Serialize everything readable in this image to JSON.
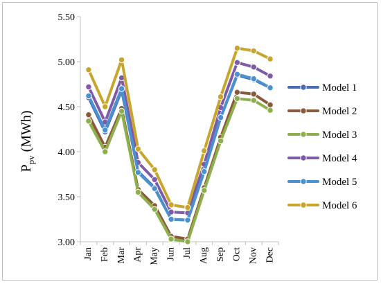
{
  "chart_data": {
    "type": "line",
    "categories": [
      "Jan",
      "Feb",
      "Mar",
      "Apr",
      "May",
      "Jun",
      "Jul",
      "Aug",
      "Sep",
      "Oct",
      "Nov",
      "Dec"
    ],
    "ylabel_main": "P",
    "ylabel_sub": "pv",
    "ylabel_unit": " (MWh)",
    "ylim": [
      3.0,
      5.5
    ],
    "yticks": [
      3.0,
      3.5,
      4.0,
      4.5,
      5.0,
      5.5
    ],
    "ytick_labels": [
      "3.00",
      "3.50",
      "4.00",
      "4.50",
      "5.00",
      "5.50"
    ],
    "grid": false,
    "legend_position": "right",
    "series": [
      {
        "name": "Model 1",
        "color": "#4a6bb8",
        "values": [
          4.6,
          4.22,
          4.68,
          3.78,
          3.6,
          3.25,
          3.24,
          3.78,
          4.38,
          4.85,
          4.8,
          4.71
        ]
      },
      {
        "name": "Model 2",
        "color": "#8b5a3c",
        "values": [
          4.41,
          4.05,
          4.48,
          3.58,
          3.4,
          3.06,
          3.03,
          3.6,
          4.16,
          4.66,
          4.64,
          4.52
        ]
      },
      {
        "name": "Model 3",
        "color": "#8db04c",
        "values": [
          4.34,
          4.0,
          4.45,
          3.55,
          3.36,
          3.03,
          3.0,
          3.57,
          4.12,
          4.59,
          4.57,
          4.46
        ]
      },
      {
        "name": "Model 4",
        "color": "#7e5aa8",
        "values": [
          4.72,
          4.33,
          4.82,
          3.88,
          3.69,
          3.33,
          3.32,
          3.86,
          4.49,
          4.99,
          4.94,
          4.84
        ]
      },
      {
        "name": "Model 5",
        "color": "#4a92cf",
        "values": [
          4.62,
          4.24,
          4.7,
          3.77,
          3.59,
          3.25,
          3.24,
          3.78,
          4.38,
          4.86,
          4.81,
          4.71
        ]
      },
      {
        "name": "Model 6",
        "color": "#c8a62e",
        "values": [
          4.91,
          4.5,
          5.02,
          4.03,
          3.8,
          3.41,
          3.38,
          4.01,
          4.61,
          5.15,
          5.12,
          5.03
        ]
      }
    ]
  }
}
